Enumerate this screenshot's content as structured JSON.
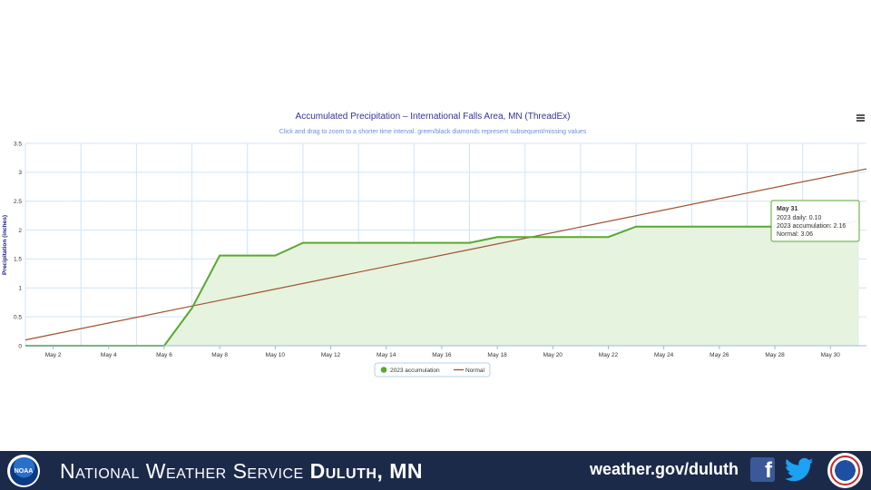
{
  "chart": {
    "title": "Accumulated Precipitation – International Falls Area, MN (ThreadEx)",
    "subtitle": "Click and drag to zoom to a shorter time interval. green/black diamonds represent subsequent/missing values",
    "menu_icon": "hamburger-menu-icon"
  },
  "chart_data": {
    "type": "area",
    "x_unit": "day of May 2023",
    "x_tick_labels": [
      "May 2",
      "May 4",
      "May 6",
      "May 8",
      "May 10",
      "May 12",
      "May 14",
      "May 16",
      "May 18",
      "May 20",
      "May 22",
      "May 24",
      "May 26",
      "May 28",
      "May 30"
    ],
    "x_ticks": [
      2,
      4,
      6,
      8,
      10,
      12,
      14,
      16,
      18,
      20,
      22,
      24,
      26,
      28,
      30
    ],
    "xlim": [
      1,
      31.3
    ],
    "ylabel": "Precipitation (inches)",
    "ylim": [
      0,
      3.5
    ],
    "y_ticks": [
      0,
      0.5,
      1,
      1.5,
      2,
      2.5,
      3,
      3.5
    ],
    "y_tick_labels": [
      "0",
      "0.5",
      "1",
      "1.5",
      "2",
      "2.5",
      "3",
      "3.5"
    ],
    "grid": true,
    "legend_position": "bottom-center",
    "series": [
      {
        "name": "2023 accumulation",
        "color": "#5aa832",
        "fill": "#e6f3de",
        "x": [
          1,
          2,
          3,
          4,
          5,
          6,
          7,
          8,
          9,
          10,
          11,
          12,
          13,
          14,
          15,
          16,
          17,
          18,
          19,
          20,
          21,
          22,
          23,
          24,
          25,
          26,
          27,
          28,
          29,
          30,
          31
        ],
        "y": [
          0,
          0,
          0,
          0,
          0,
          0,
          0.65,
          1.56,
          1.56,
          1.56,
          1.78,
          1.78,
          1.78,
          1.78,
          1.78,
          1.78,
          1.78,
          1.88,
          1.88,
          1.88,
          1.88,
          1.88,
          2.06,
          2.06,
          2.06,
          2.06,
          2.06,
          2.06,
          2.06,
          2.06,
          2.16
        ]
      },
      {
        "name": "Normal",
        "color": "#a0522d",
        "x": [
          1,
          31.3
        ],
        "y": [
          0.1,
          3.06
        ]
      }
    ],
    "tooltip": {
      "date": "May 31",
      "daily": "2023 daily: 0.10",
      "accumulation": "2023 accumulation: 2.16",
      "normal": "Normal: 3.06"
    }
  },
  "footer": {
    "org_prefix": "National Weather Service",
    "office": "Duluth, MN",
    "url": "weather.gov/duluth",
    "noaa_logo_text": "NOAA",
    "noaa_icon": "noaa-logo",
    "facebook_icon": "facebook-icon",
    "facebook_glyph": "f",
    "twitter_icon": "twitter-icon",
    "nws_icon": "nws-logo"
  }
}
